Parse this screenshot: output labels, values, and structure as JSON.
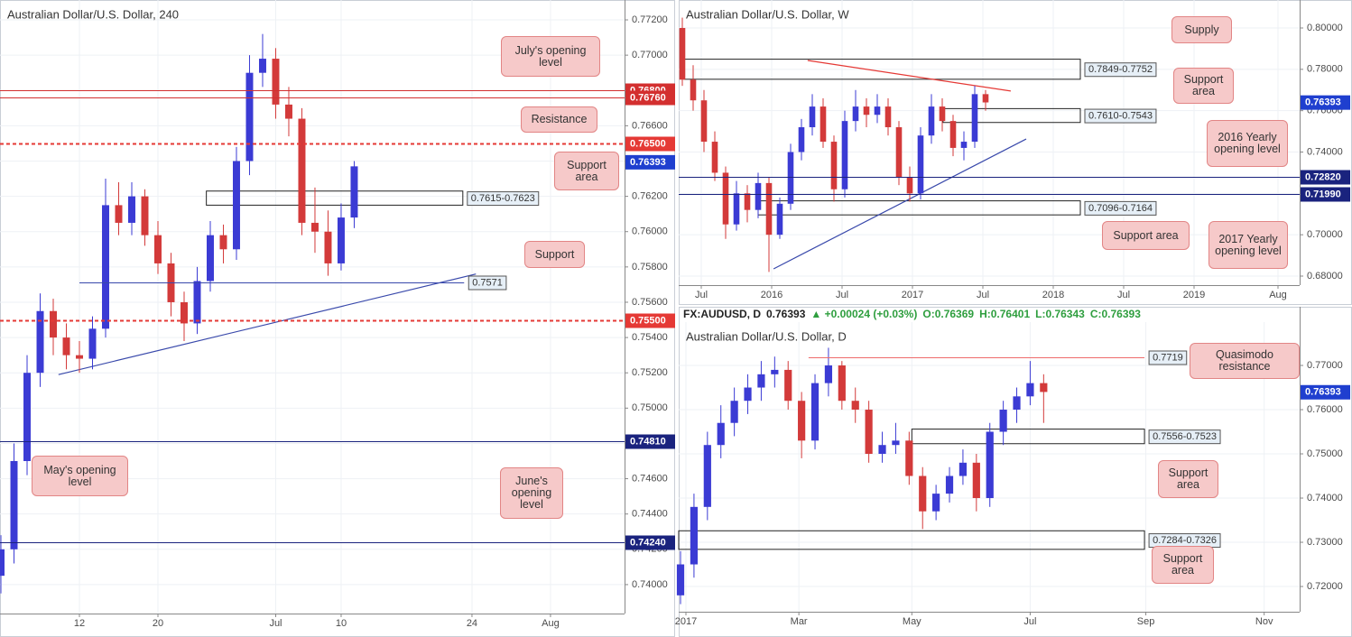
{
  "chart_data": [
    {
      "type": "candlestick",
      "title": "Australian Dollar/U.S. Dollar, 240",
      "up_color": "#3b3bd4",
      "down_color": "#d33a3a",
      "grid": true,
      "x": [
        -6,
        -5,
        -4,
        -3,
        -2,
        -1,
        0,
        1,
        2,
        3,
        4,
        5,
        6,
        7,
        8,
        9,
        10,
        11,
        12,
        13,
        14,
        15,
        16,
        17,
        18,
        19,
        20,
        21
      ],
      "open": [
        0.7405,
        0.742,
        0.747,
        0.752,
        0.7555,
        0.754,
        0.753,
        0.7528,
        0.7545,
        0.7615,
        0.7605,
        0.762,
        0.7598,
        0.7582,
        0.756,
        0.7548,
        0.7572,
        0.7598,
        0.759,
        0.764,
        0.769,
        0.7698,
        0.7672,
        0.7664,
        0.7605,
        0.76,
        0.7582,
        0.7608
      ],
      "high": [
        0.7428,
        0.748,
        0.753,
        0.7565,
        0.7562,
        0.7548,
        0.7538,
        0.7552,
        0.763,
        0.7628,
        0.7628,
        0.7624,
        0.7606,
        0.7588,
        0.7566,
        0.758,
        0.7606,
        0.7604,
        0.7648,
        0.77,
        0.7712,
        0.7704,
        0.7682,
        0.767,
        0.7625,
        0.7612,
        0.7616,
        0.764
      ],
      "low": [
        0.7395,
        0.7412,
        0.7462,
        0.7512,
        0.753,
        0.7522,
        0.752,
        0.7522,
        0.754,
        0.7598,
        0.7598,
        0.7592,
        0.7576,
        0.7552,
        0.7538,
        0.7542,
        0.7566,
        0.7582,
        0.7584,
        0.7632,
        0.7682,
        0.7664,
        0.7654,
        0.7598,
        0.7588,
        0.7575,
        0.7578,
        0.7602
      ],
      "close": [
        0.742,
        0.747,
        0.752,
        0.7555,
        0.754,
        0.753,
        0.7528,
        0.7545,
        0.7615,
        0.7605,
        0.762,
        0.7598,
        0.7582,
        0.756,
        0.7548,
        0.7572,
        0.7598,
        0.759,
        0.764,
        0.769,
        0.7698,
        0.7672,
        0.7664,
        0.7605,
        0.76,
        0.7582,
        0.7608,
        0.7637
      ],
      "xlim": [
        -6.07,
        41.66
      ],
      "ylim": [
        0.73836,
        0.77287
      ],
      "xticks": [
        {
          "value": 0,
          "label": "12"
        },
        {
          "value": 6,
          "label": "20"
        },
        {
          "value": 15,
          "label": "Jul"
        },
        {
          "value": 20,
          "label": "10"
        },
        {
          "value": 30,
          "label": "24"
        },
        {
          "value": 36,
          "label": "Aug"
        }
      ],
      "yticks": [
        {
          "value": 0.74,
          "label": "0.74000"
        },
        {
          "value": 0.742,
          "label": "0.74200"
        },
        {
          "value": 0.744,
          "label": "0.74400"
        },
        {
          "value": 0.746,
          "label": "0.74600"
        },
        {
          "value": 0.748,
          "label": "0.74800"
        },
        {
          "value": 0.75,
          "label": "0.75000"
        },
        {
          "value": 0.752,
          "label": "0.75200"
        },
        {
          "value": 0.754,
          "label": "0.75400"
        },
        {
          "value": 0.756,
          "label": "0.75600"
        },
        {
          "value": 0.758,
          "label": "0.75800"
        },
        {
          "value": 0.76,
          "label": "0.76000"
        },
        {
          "value": 0.762,
          "label": "0.76200"
        },
        {
          "value": 0.764,
          "label": "0.76400"
        },
        {
          "value": 0.766,
          "label": "0.76600"
        },
        {
          "value": 0.768,
          "label": "0.76800"
        },
        {
          "value": 0.77,
          "label": "0.77000"
        },
        {
          "value": 0.772,
          "label": "0.77200"
        }
      ],
      "levels": [
        {
          "value": 0.768,
          "label": "0.76800",
          "color": "#d32f2f",
          "style": "solid"
        },
        {
          "value": 0.7676,
          "label": "0.76760",
          "color": "#d32f2f",
          "style": "solid"
        },
        {
          "value": 0.765,
          "label": "0.76500",
          "color": "#e53935",
          "style": "dashed"
        },
        {
          "value": 0.755,
          "label": "0.75500",
          "color": "#e53935",
          "style": "dashed"
        },
        {
          "value": 0.7481,
          "label": "0.74810",
          "color": "#1a237e",
          "style": "solid"
        },
        {
          "value": 0.7424,
          "label": "0.74240",
          "color": "#1a237e",
          "style": "solid"
        },
        {
          "value": 0.7571,
          "label": "0.7571",
          "color": "#3949ab",
          "style": "solid",
          "xrange": [
            0,
            29.4
          ]
        }
      ],
      "zones": [
        {
          "range": [
            0.7615,
            0.7623
          ],
          "label": "0.7615-0.7623",
          "xrange": [
            9.7,
            29.3
          ]
        }
      ],
      "trendlines": [
        {
          "points": [
            [
              -1.6,
              0.7519
            ],
            [
              30.3,
              0.7576
            ]
          ],
          "color": "#3949ab"
        }
      ],
      "last": {
        "value": 0.76393,
        "label": "0.76393"
      },
      "annotations": [
        "July's opening level",
        "Resistance",
        "Support area",
        "Support",
        "May's opening level",
        "June's opening level"
      ]
    },
    {
      "type": "candlestick",
      "title": "Australian Dollar/U.S. Dollar, W",
      "up_color": "#3b3bd4",
      "down_color": "#d33a3a",
      "grid": true,
      "x": [
        -33,
        -29,
        -25,
        -21,
        -17,
        -13,
        -9,
        -5,
        -1,
        3,
        7,
        11,
        15,
        19,
        23,
        27,
        31,
        35,
        39,
        43,
        47,
        51,
        55,
        59,
        63,
        67,
        71,
        75,
        79
      ],
      "open": [
        0.8,
        0.775,
        0.765,
        0.745,
        0.73,
        0.705,
        0.72,
        0.712,
        0.725,
        0.7,
        0.715,
        0.74,
        0.752,
        0.762,
        0.745,
        0.722,
        0.755,
        0.762,
        0.758,
        0.762,
        0.752,
        0.728,
        0.72,
        0.748,
        0.762,
        0.755,
        0.742,
        0.745,
        0.768
      ],
      "high": [
        0.805,
        0.782,
        0.77,
        0.75,
        0.733,
        0.726,
        0.724,
        0.73,
        0.728,
        0.718,
        0.744,
        0.756,
        0.768,
        0.766,
        0.748,
        0.76,
        0.77,
        0.766,
        0.768,
        0.766,
        0.755,
        0.733,
        0.752,
        0.768,
        0.766,
        0.758,
        0.75,
        0.772,
        0.77
      ],
      "low": [
        0.772,
        0.76,
        0.74,
        0.726,
        0.698,
        0.702,
        0.706,
        0.708,
        0.682,
        0.698,
        0.712,
        0.736,
        0.748,
        0.742,
        0.716,
        0.718,
        0.75,
        0.752,
        0.754,
        0.748,
        0.724,
        0.716,
        0.717,
        0.744,
        0.75,
        0.738,
        0.736,
        0.742,
        0.76
      ],
      "close": [
        0.775,
        0.765,
        0.745,
        0.73,
        0.705,
        0.72,
        0.712,
        0.725,
        0.7,
        0.715,
        0.74,
        0.752,
        0.762,
        0.745,
        0.722,
        0.755,
        0.762,
        0.758,
        0.762,
        0.752,
        0.728,
        0.72,
        0.748,
        0.762,
        0.755,
        0.742,
        0.745,
        0.768,
        0.764
      ],
      "xlim": [
        -34.33,
        195
      ],
      "ylim": [
        0.67564,
        0.81135
      ],
      "xticks": [
        {
          "value": -26,
          "label": "Jul"
        },
        {
          "value": 0,
          "label": "2016"
        },
        {
          "value": 26,
          "label": "Jul"
        },
        {
          "value": 52,
          "label": "2017"
        },
        {
          "value": 78,
          "label": "Jul"
        },
        {
          "value": 104,
          "label": "2018"
        },
        {
          "value": 130,
          "label": "Jul"
        },
        {
          "value": 156,
          "label": "2019"
        },
        {
          "value": 187,
          "label": "Aug"
        }
      ],
      "yticks": [
        {
          "value": 0.68,
          "label": "0.68000"
        },
        {
          "value": 0.7,
          "label": "0.70000"
        },
        {
          "value": 0.72,
          "label": "0.72000"
        },
        {
          "value": 0.74,
          "label": "0.74000"
        },
        {
          "value": 0.76,
          "label": "0.76000"
        },
        {
          "value": 0.78,
          "label": "0.78000"
        },
        {
          "value": 0.8,
          "label": "0.80000"
        }
      ],
      "levels": [
        {
          "value": 0.7282,
          "label": "0.72820",
          "color": "#1a237e",
          "style": "solid"
        },
        {
          "value": 0.7199,
          "label": "0.71990",
          "color": "#1a237e",
          "style": "solid"
        }
      ],
      "zones": [
        {
          "range": [
            0.7849,
            0.7752
          ],
          "label": "0.7849-0.7752",
          "xrange": [
            -32.3,
            114
          ]
        },
        {
          "range": [
            0.761,
            0.7543
          ],
          "label": "0.7610-0.7543",
          "xrange": [
            63.3,
            114
          ]
        },
        {
          "range": [
            0.7096,
            0.7164
          ],
          "label": "0.7096-0.7164",
          "xrange": [
            -5,
            114
          ]
        }
      ],
      "trendlines": [
        {
          "points": [
            [
              13.3,
              0.7843
            ],
            [
              88.3,
              0.7695
            ]
          ],
          "color": "#e53935"
        },
        {
          "points": [
            [
              0.7,
              0.6835
            ],
            [
              94,
              0.7463
            ]
          ],
          "color": "#3949ab"
        }
      ],
      "last": {
        "value": 0.76393,
        "label": "0.76393"
      },
      "annotations": [
        "Supply",
        "Support area",
        "2016 Yearly opening level",
        "Support area",
        "2017 Yearly opening level"
      ]
    },
    {
      "type": "candlestick",
      "title": "Australian Dollar/U.S. Dollar, D",
      "header": {
        "symbol": "FX:AUDUSD, D",
        "price": "0.76393",
        "change": "▲ +0.00024 (+0.03%)",
        "ohlc": [
          "O:0.76369",
          "H:0.76401",
          "L:0.76343",
          "C:0.76393"
        ]
      },
      "up_color": "#3b3bd4",
      "down_color": "#d33a3a",
      "grid": true,
      "x": [
        -2,
        3,
        8,
        13,
        18,
        23,
        28,
        33,
        38,
        43,
        48,
        53,
        58,
        63,
        68,
        73,
        78,
        83,
        88,
        93,
        98,
        103,
        108,
        113,
        118,
        123,
        128,
        133
      ],
      "open": [
        0.718,
        0.725,
        0.738,
        0.752,
        0.757,
        0.762,
        0.765,
        0.768,
        0.769,
        0.762,
        0.753,
        0.766,
        0.77,
        0.762,
        0.76,
        0.75,
        0.752,
        0.753,
        0.745,
        0.737,
        0.741,
        0.745,
        0.748,
        0.74,
        0.755,
        0.76,
        0.763,
        0.766
      ],
      "high": [
        0.728,
        0.741,
        0.755,
        0.761,
        0.765,
        0.768,
        0.771,
        0.772,
        0.771,
        0.764,
        0.768,
        0.774,
        0.771,
        0.765,
        0.762,
        0.755,
        0.757,
        0.755,
        0.747,
        0.743,
        0.747,
        0.751,
        0.75,
        0.757,
        0.762,
        0.765,
        0.771,
        0.768
      ],
      "low": [
        0.716,
        0.722,
        0.735,
        0.749,
        0.754,
        0.759,
        0.762,
        0.765,
        0.76,
        0.749,
        0.751,
        0.763,
        0.76,
        0.757,
        0.748,
        0.748,
        0.75,
        0.743,
        0.733,
        0.735,
        0.739,
        0.743,
        0.737,
        0.738,
        0.752,
        0.757,
        0.761,
        0.757
      ],
      "close": [
        0.725,
        0.738,
        0.752,
        0.757,
        0.762,
        0.765,
        0.768,
        0.769,
        0.762,
        0.753,
        0.766,
        0.77,
        0.762,
        0.76,
        0.75,
        0.752,
        0.753,
        0.745,
        0.737,
        0.741,
        0.745,
        0.748,
        0.74,
        0.755,
        0.76,
        0.763,
        0.766,
        0.764
      ],
      "xlim": [
        -2.68,
        228.19
      ],
      "ylim": [
        0.71429,
        0.77878
      ],
      "xticks": [
        {
          "value": 0,
          "label": "2017"
        },
        {
          "value": 42,
          "label": "Mar"
        },
        {
          "value": 84,
          "label": "May"
        },
        {
          "value": 128,
          "label": "Jul"
        },
        {
          "value": 171,
          "label": "Sep"
        },
        {
          "value": 215,
          "label": "Nov"
        }
      ],
      "yticks": [
        {
          "value": 0.72,
          "label": "0.72000"
        },
        {
          "value": 0.73,
          "label": "0.73000"
        },
        {
          "value": 0.74,
          "label": "0.74000"
        },
        {
          "value": 0.75,
          "label": "0.75000"
        },
        {
          "value": 0.76,
          "label": "0.76000"
        },
        {
          "value": 0.77,
          "label": "0.77000"
        }
      ],
      "levels": [
        {
          "value": 0.7719,
          "label": "0.7719",
          "color": "#ef6c6c",
          "style": "solid",
          "xrange": [
            45.6,
            170.5
          ]
        }
      ],
      "zones": [
        {
          "range": [
            0.7556,
            0.7523
          ],
          "label": "0.7556-0.7523",
          "xrange": [
            84,
            170.5
          ]
        },
        {
          "range": [
            0.7284,
            0.7326
          ],
          "label": "0.7284-0.7326",
          "xrange": [
            -2.68,
            170.5
          ]
        }
      ],
      "trendlines": [],
      "last": {
        "value": 0.76393,
        "label": "0.76393"
      },
      "annotations": [
        "Quasimodo resistance",
        "Support area",
        "Support area"
      ]
    }
  ]
}
